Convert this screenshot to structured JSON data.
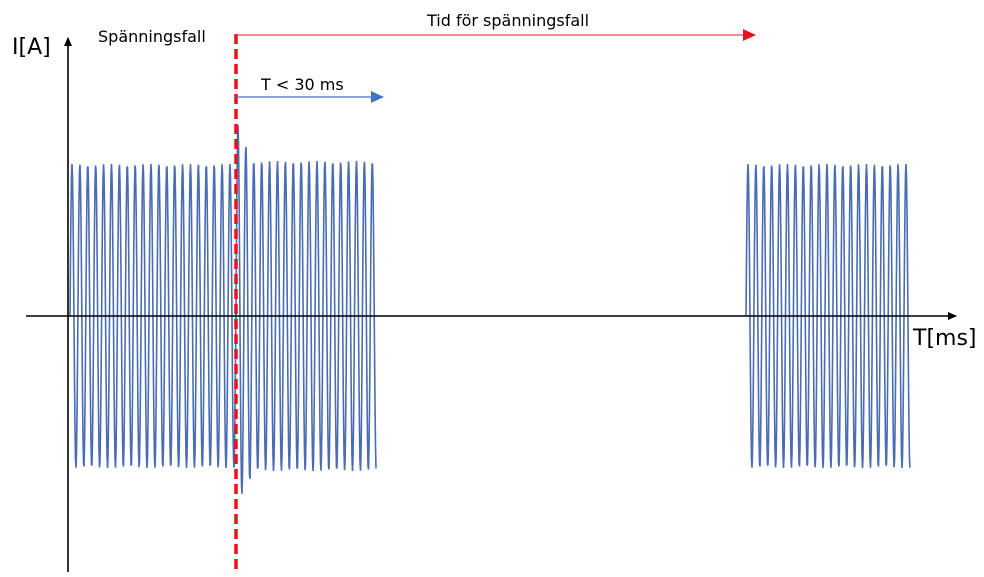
{
  "labels": {
    "y_axis": "I[A]",
    "x_axis": "T[ms]",
    "voltage_dip": "Spänningsfall",
    "dip_duration": "Tid för spänningsfall",
    "short_interval": "T < 30 ms"
  },
  "colors": {
    "waveform": "#4a6cb3",
    "dip_marker": "#e8121b",
    "duration_arrow": "#f04a4a",
    "interval_arrow": "#4472c4",
    "axis": "#000000"
  }
}
